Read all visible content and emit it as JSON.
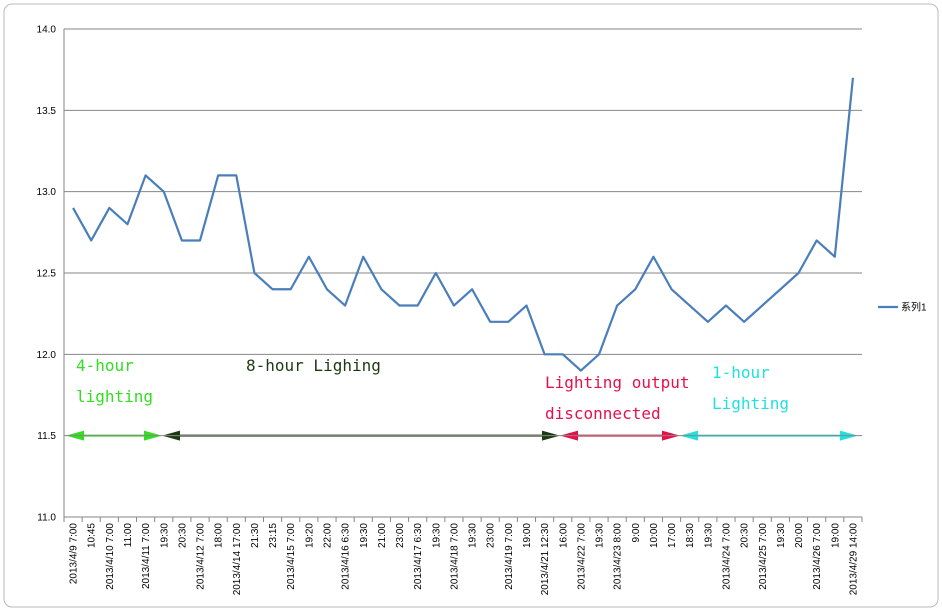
{
  "chart_data": {
    "type": "line",
    "categories": [
      "2013/4/9 7:00",
      "10:45",
      "2013/4/10 7:00",
      "11:00",
      "2013/4/11 7:00",
      "19:30",
      "20:30",
      "2013/4/12 7:00",
      "18:00",
      "2013/4/14 17:00",
      "21:30",
      "23:15",
      "2013/4/15 7:00",
      "19:20",
      "22:00",
      "2013/4/16 6:30",
      "19:30",
      "21:00",
      "23:00",
      "2013/4/17 6:30",
      "19:30",
      "2013/4/18 7:00",
      "19:30",
      "23:00",
      "2013/4/19 7:00",
      "19:00",
      "2013/4/21 12:30",
      "16:00",
      "2013/4/22 7:00",
      "19:30",
      "2013/4/23 8:00",
      "9:00",
      "10:00",
      "17:00",
      "18:30",
      "19:30",
      "2013/4/24 7:00",
      "20:30",
      "2013/4/25 7:00",
      "19:30",
      "20:00",
      "2013/4/26 7:00",
      "19:00",
      "2013/4/29 14:00"
    ],
    "series": [
      {
        "name": "系列1",
        "color": "#4a7ebb",
        "values": [
          12.9,
          12.7,
          12.9,
          12.8,
          13.1,
          13.0,
          12.7,
          12.7,
          13.1,
          13.1,
          12.5,
          12.4,
          12.4,
          12.6,
          12.4,
          12.3,
          12.6,
          12.4,
          12.3,
          12.3,
          12.5,
          12.3,
          12.4,
          12.2,
          12.2,
          12.3,
          12.0,
          12.0,
          11.9,
          12.0,
          12.3,
          12.4,
          12.6,
          12.4,
          12.3,
          12.2,
          12.3,
          12.2,
          12.3,
          12.4,
          12.5,
          12.7,
          12.6,
          13.7
        ]
      }
    ],
    "ylim": [
      11.0,
      14.0
    ],
    "yticks": [
      {
        "value": 11.0,
        "label": "11.0"
      },
      {
        "value": 11.5,
        "label": "11.5"
      },
      {
        "value": 12.0,
        "label": "12.0"
      },
      {
        "value": 12.5,
        "label": "12.5"
      },
      {
        "value": 13.0,
        "label": "13.0"
      },
      {
        "value": 13.5,
        "label": "13.5"
      },
      {
        "value": 14.0,
        "label": "14.0"
      }
    ],
    "grid": true,
    "legend": "right",
    "annotations": [
      {
        "lines": [
          "4-hour",
          "lighting"
        ],
        "color": "#33dd22"
      },
      {
        "lines": [
          "8-hour Lighing"
        ],
        "color": "#1c3a12"
      },
      {
        "lines": [
          "Lighting output",
          "disconnected"
        ],
        "color": "#e8104a"
      },
      {
        "lines": [
          "1-hour",
          "Lighting"
        ],
        "color": "#22e0e0"
      }
    ]
  }
}
